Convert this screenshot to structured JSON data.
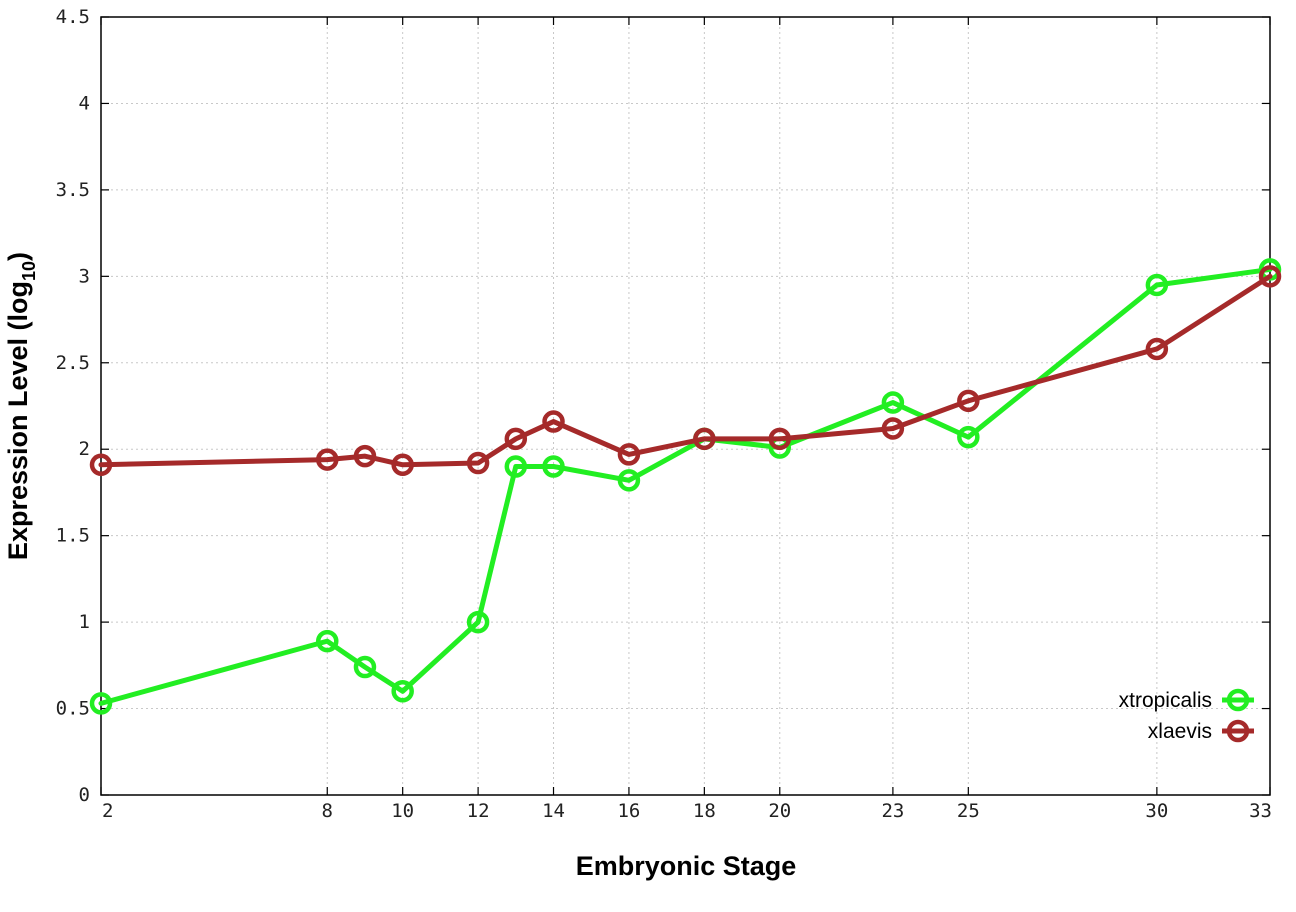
{
  "colors": {
    "xtropicalis": "#22ee22",
    "xlaevis": "#a52a2a"
  },
  "chart_data": {
    "type": "line",
    "title": "",
    "xlabel": "Embryonic Stage",
    "ylabel_main": "Expression Level (log",
    "ylabel_sub": "10",
    "ylabel_close": ")",
    "xlim": [
      2,
      33
    ],
    "ylim": [
      0,
      4.5
    ],
    "grid": true,
    "legend_position": "bottom-right",
    "x": [
      2,
      8,
      9,
      10,
      12,
      13,
      14,
      16,
      18,
      20,
      23,
      25,
      30,
      33
    ],
    "x_ticks": [
      {
        "value": 2,
        "label": "2"
      },
      {
        "value": 8,
        "label": "8"
      },
      {
        "value": 10,
        "label": "10"
      },
      {
        "value": 12,
        "label": "12"
      },
      {
        "value": 14,
        "label": "14"
      },
      {
        "value": 16,
        "label": "16"
      },
      {
        "value": 18,
        "label": "18"
      },
      {
        "value": 20,
        "label": "20"
      },
      {
        "value": 23,
        "label": "23"
      },
      {
        "value": 25,
        "label": "25"
      },
      {
        "value": 30,
        "label": "30"
      },
      {
        "value": 33,
        "label": "33"
      }
    ],
    "y_ticks": [
      {
        "value": 0,
        "label": "0"
      },
      {
        "value": 0.5,
        "label": "0.5"
      },
      {
        "value": 1,
        "label": "1"
      },
      {
        "value": 1.5,
        "label": "1.5"
      },
      {
        "value": 2,
        "label": "2"
      },
      {
        "value": 2.5,
        "label": "2.5"
      },
      {
        "value": 3,
        "label": "3"
      },
      {
        "value": 3.5,
        "label": "3.5"
      },
      {
        "value": 4,
        "label": "4"
      },
      {
        "value": 4.5,
        "label": "4.5"
      }
    ],
    "series": [
      {
        "name": "xtropicalis",
        "color": "#22ee22",
        "values": [
          0.53,
          0.89,
          0.74,
          0.6,
          1.0,
          1.9,
          1.9,
          1.82,
          2.06,
          2.01,
          2.27,
          2.07,
          2.95,
          3.04
        ]
      },
      {
        "name": "xlaevis",
        "color": "#a52a2a",
        "values": [
          1.91,
          1.94,
          1.96,
          1.91,
          1.92,
          2.06,
          2.16,
          1.97,
          2.06,
          2.06,
          2.12,
          2.28,
          2.58,
          3.0
        ]
      }
    ]
  }
}
